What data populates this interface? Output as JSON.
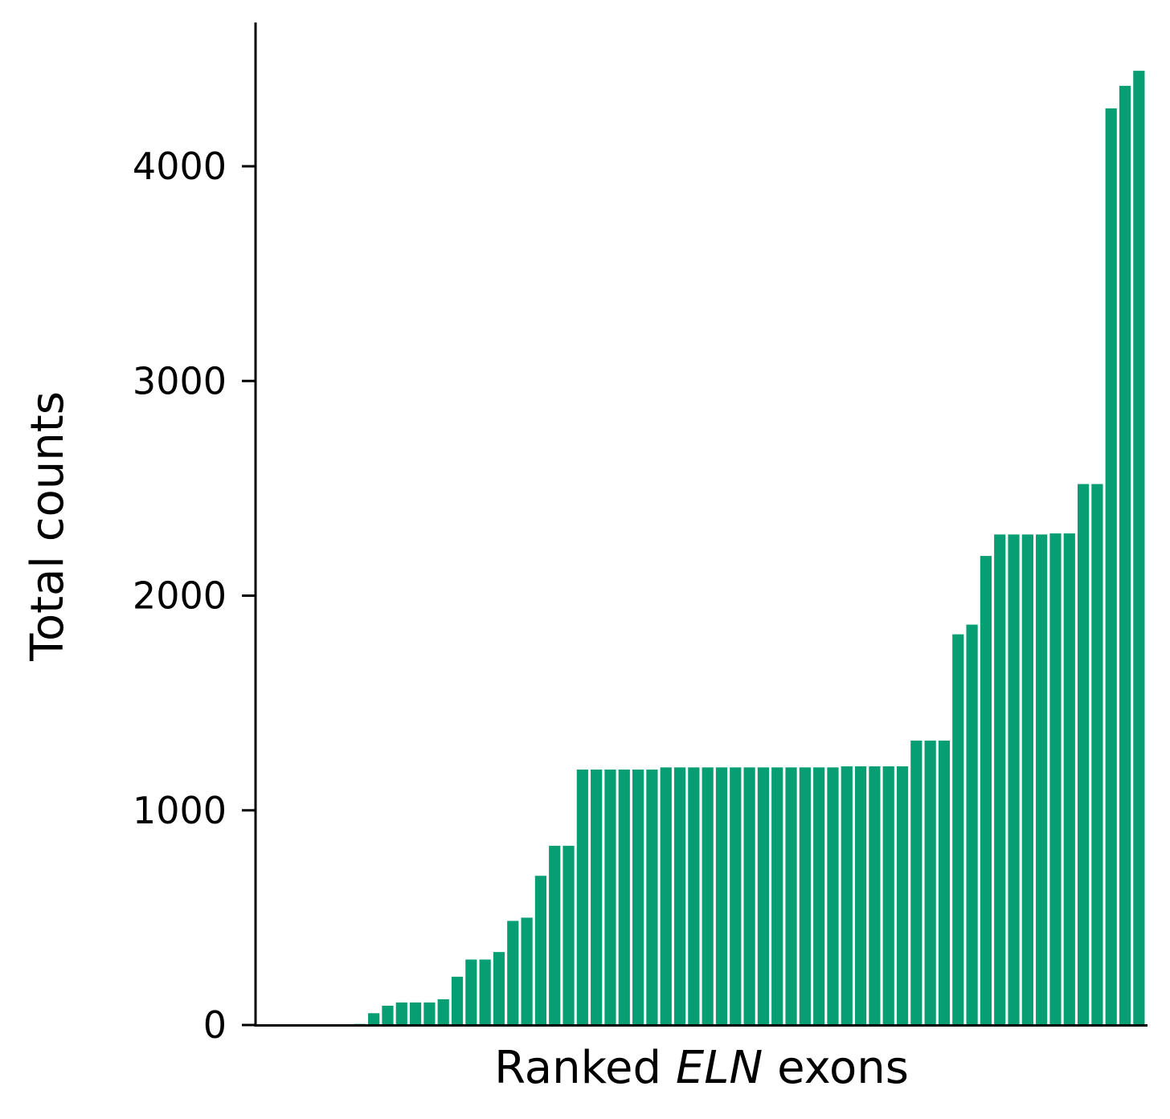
{
  "chart_data": {
    "type": "bar",
    "xlabel_parts": [
      {
        "text": "Ranked ",
        "italic": false
      },
      {
        "text": "ELN",
        "italic": true
      },
      {
        "text": " exons",
        "italic": false
      }
    ],
    "ylabel": "Total counts",
    "ylim": [
      0,
      4670
    ],
    "yticks": [
      0,
      1000,
      2000,
      3000,
      4000
    ],
    "ytick_labels": [
      "0",
      "1000",
      "2000",
      "3000",
      "4000"
    ],
    "bar_color": "#069e72",
    "grid": false,
    "values": [
      0,
      0,
      0,
      0,
      0,
      0,
      0,
      5,
      55,
      90,
      105,
      105,
      105,
      120,
      225,
      305,
      305,
      340,
      485,
      500,
      695,
      835,
      835,
      1190,
      1190,
      1190,
      1190,
      1190,
      1190,
      1200,
      1200,
      1200,
      1200,
      1200,
      1200,
      1200,
      1200,
      1200,
      1200,
      1200,
      1200,
      1200,
      1205,
      1205,
      1205,
      1205,
      1205,
      1325,
      1325,
      1325,
      1820,
      1865,
      2185,
      2285,
      2285,
      2285,
      2285,
      2290,
      2290,
      2520,
      2520,
      4270,
      4375,
      4445
    ]
  }
}
